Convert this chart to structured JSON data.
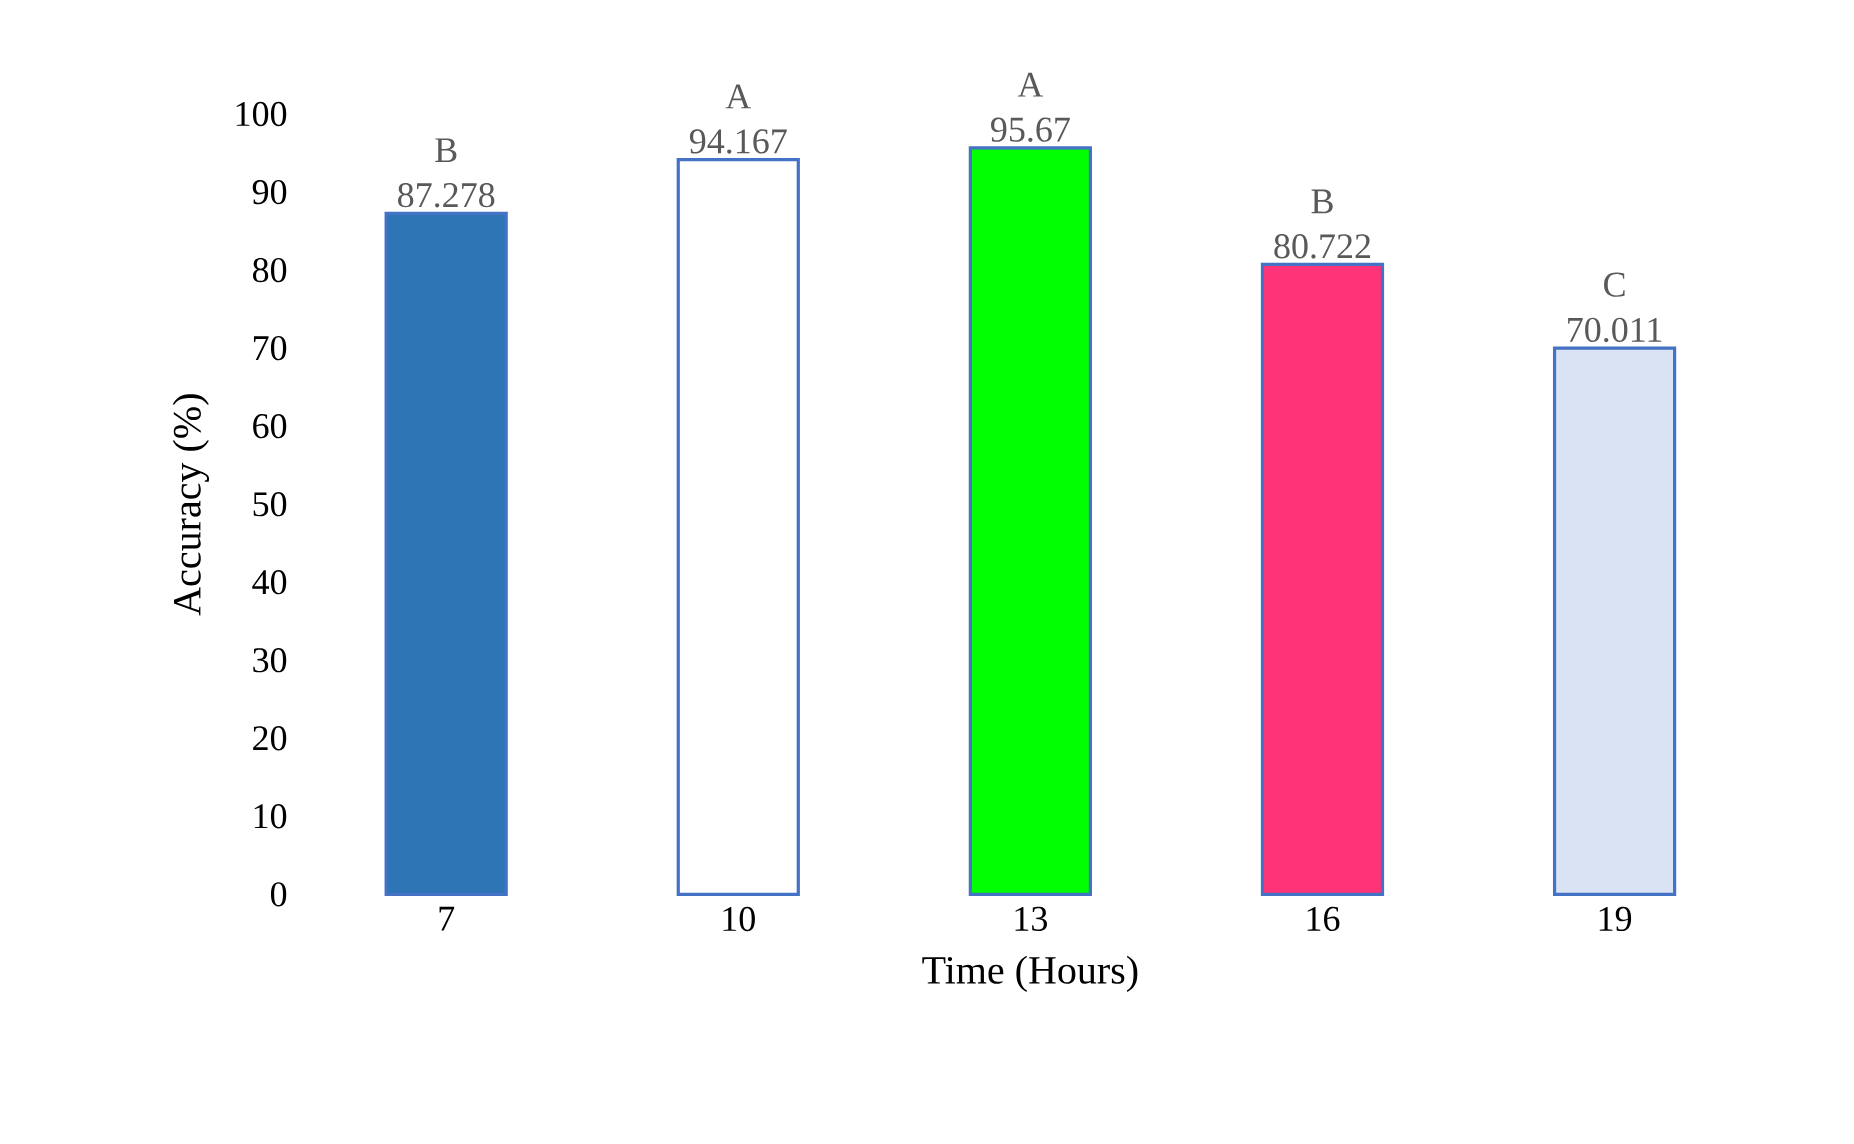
{
  "chart_data": {
    "type": "bar",
    "xlabel": "Time (Hours)",
    "ylabel": "Accuracy (%)",
    "categories": [
      "7",
      "10",
      "13",
      "16",
      "19"
    ],
    "values": [
      87.278,
      94.167,
      95.67,
      80.722,
      70.011
    ],
    "colors": [
      "#2e75b6",
      "#ffffff",
      "#00ff00",
      "#ff3377",
      "#dae3f3"
    ],
    "data_labels": true,
    "ylim": [
      0,
      100
    ],
    "yticks": [
      0,
      10,
      20,
      30,
      40,
      50,
      60,
      70,
      80,
      90,
      100
    ],
    "grid": false,
    "annotations": [
      {
        "text": "B",
        "x": "7",
        "y": 87.278
      },
      {
        "text": "A",
        "x": "10",
        "y": 94.167
      },
      {
        "text": "A",
        "x": "13",
        "y": 95.67
      },
      {
        "text": "B",
        "x": "16",
        "y": 80.722
      },
      {
        "text": "C",
        "x": "19",
        "y": 70.011
      }
    ]
  }
}
